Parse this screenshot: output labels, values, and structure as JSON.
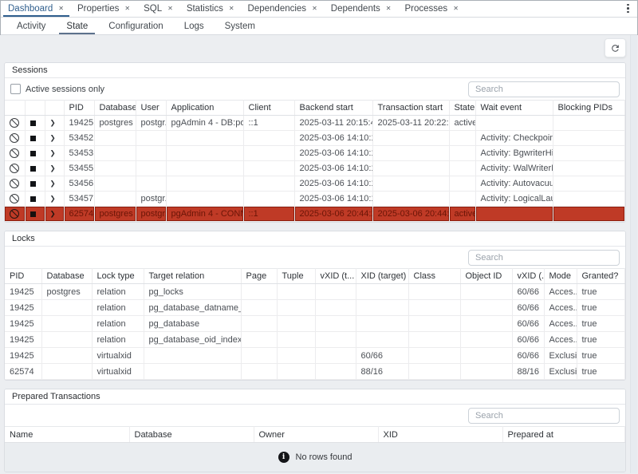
{
  "colors": {
    "accent": "#2f5e8d",
    "highlight_row": "#bf3a26"
  },
  "icons": {
    "tab_close": "close-x",
    "menu": "kebab-vertical-dots",
    "refresh": "circular-refresh-arrows",
    "row_cancel": "slashed-circle-cancel",
    "row_terminate": "black-square-stop",
    "row_expand": "chevron-right",
    "empty_info": "info-circle"
  },
  "main_tabs": {
    "close_glyph": "✕",
    "items": [
      {
        "label": "Dashboard",
        "active": true
      },
      {
        "label": "Properties",
        "active": false
      },
      {
        "label": "SQL",
        "active": false
      },
      {
        "label": "Statistics",
        "active": false
      },
      {
        "label": "Dependencies",
        "active": false
      },
      {
        "label": "Dependents",
        "active": false
      },
      {
        "label": "Processes",
        "active": false
      }
    ]
  },
  "sub_tabs": [
    {
      "label": "Activity",
      "active": false
    },
    {
      "label": "State",
      "active": true
    },
    {
      "label": "Configuration",
      "active": false
    },
    {
      "label": "Logs",
      "active": false
    },
    {
      "label": "System",
      "active": false
    }
  ],
  "sessions": {
    "title": "Sessions",
    "active_only_label": "Active sessions only",
    "search_placeholder": "Search",
    "columns": [
      "PID",
      "Database",
      "User",
      "Application",
      "Client",
      "Backend start",
      "Transaction start",
      "State",
      "Wait event",
      "Blocking PIDs"
    ],
    "rows": [
      {
        "highlighted": false,
        "cells": [
          "19425",
          "postgres",
          "postgr...",
          "pgAdmin 4 - DB:post...",
          "::1",
          "2025-03-11 20:15:46 ...",
          "2025-03-11 20:22:36 ...",
          "active",
          "",
          ""
        ]
      },
      {
        "highlighted": false,
        "cells": [
          "53452",
          "",
          "",
          "",
          "",
          "2025-03-06 14:10:11 ...",
          "",
          "",
          "Activity: Checkpointe...",
          ""
        ]
      },
      {
        "highlighted": false,
        "cells": [
          "53453",
          "",
          "",
          "",
          "",
          "2025-03-06 14:10:11 ...",
          "",
          "",
          "Activity: BgwriterHib...",
          ""
        ]
      },
      {
        "highlighted": false,
        "cells": [
          "53455",
          "",
          "",
          "",
          "",
          "2025-03-06 14:10:11 ...",
          "",
          "",
          "Activity: WalWriterM...",
          ""
        ]
      },
      {
        "highlighted": false,
        "cells": [
          "53456",
          "",
          "",
          "",
          "",
          "2025-03-06 14:10:11 ...",
          "",
          "",
          "Activity: Autovacuum...",
          ""
        ]
      },
      {
        "highlighted": false,
        "cells": [
          "53457",
          "",
          "postgr...",
          "",
          "",
          "2025-03-06 14:10:11 ...",
          "",
          "",
          "Activity: LogicalLaun...",
          ""
        ]
      },
      {
        "highlighted": true,
        "cells": [
          "62574",
          "postgres",
          "postgr...",
          "pgAdmin 4 - CONN:6...",
          "::1",
          "2025-03-06 20:44:25 ...",
          "2025-03-06 20:44:25 ...",
          "active",
          "",
          ""
        ]
      }
    ]
  },
  "locks": {
    "title": "Locks",
    "search_placeholder": "Search",
    "columns": [
      "PID",
      "Database",
      "Lock type",
      "Target relation",
      "Page",
      "Tuple",
      "vXID (t...",
      "XID (target)",
      "Class",
      "Object ID",
      "vXID (...",
      "Mode",
      "Granted?"
    ],
    "rows": [
      {
        "highlighted": false,
        "cells": [
          "19425",
          "postgres",
          "relation",
          "pg_locks",
          "",
          "",
          "",
          "",
          "",
          "",
          "60/66",
          "Acces...",
          "true"
        ]
      },
      {
        "highlighted": false,
        "cells": [
          "19425",
          "",
          "relation",
          "pg_database_datname_ind...",
          "",
          "",
          "",
          "",
          "",
          "",
          "60/66",
          "Acces...",
          "true"
        ]
      },
      {
        "highlighted": false,
        "cells": [
          "19425",
          "",
          "relation",
          "pg_database",
          "",
          "",
          "",
          "",
          "",
          "",
          "60/66",
          "Acces...",
          "true"
        ]
      },
      {
        "highlighted": false,
        "cells": [
          "19425",
          "",
          "relation",
          "pg_database_oid_index",
          "",
          "",
          "",
          "",
          "",
          "",
          "60/66",
          "Acces...",
          "true"
        ]
      },
      {
        "highlighted": false,
        "cells": [
          "19425",
          "",
          "virtualxid",
          "",
          "",
          "",
          "",
          "60/66",
          "",
          "",
          "60/66",
          "Exclusi...",
          "true"
        ]
      },
      {
        "highlighted": false,
        "cells": [
          "62574",
          "",
          "virtualxid",
          "",
          "",
          "",
          "",
          "88/16",
          "",
          "",
          "88/16",
          "Exclusi...",
          "true"
        ]
      }
    ]
  },
  "prepared": {
    "title": "Prepared Transactions",
    "search_placeholder": "Search",
    "columns": [
      "Name",
      "Database",
      "Owner",
      "XID",
      "Prepared at"
    ],
    "rows": [],
    "empty_message": "No rows found"
  }
}
